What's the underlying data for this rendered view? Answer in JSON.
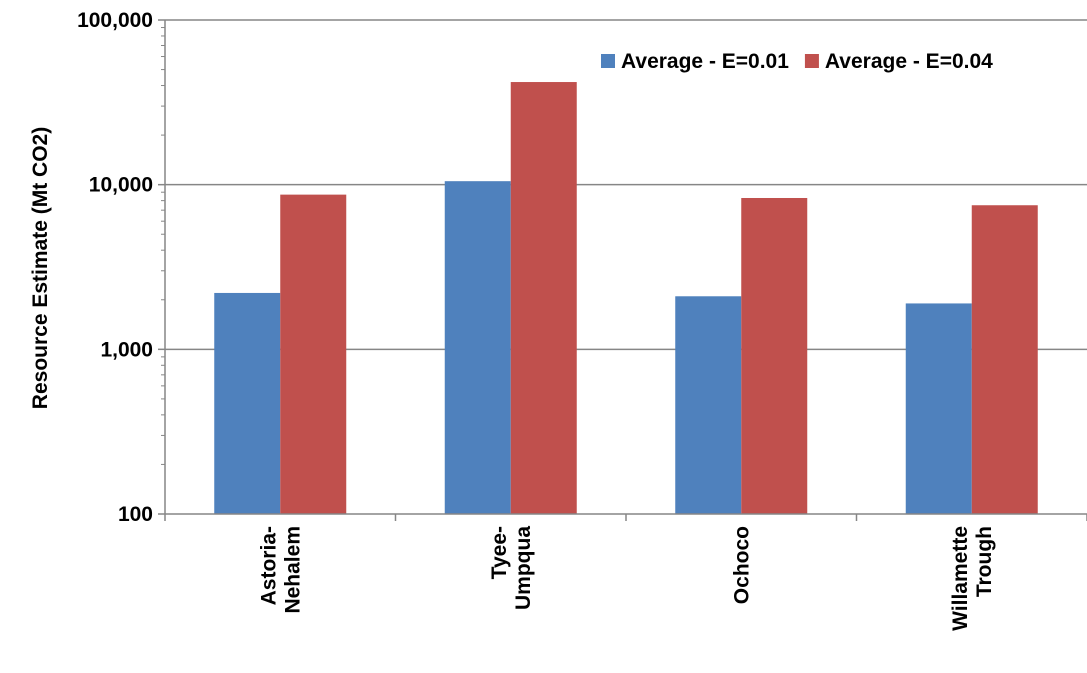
{
  "chart_data": {
    "type": "bar",
    "title": "",
    "xlabel": "",
    "ylabel": "Resource Estimate (Mt CO2)",
    "yscale": "log",
    "ylim": [
      100,
      100000
    ],
    "yticks": [
      100,
      1000,
      10000,
      100000
    ],
    "ytick_labels": [
      "100",
      "1,000",
      "10,000",
      "100,000"
    ],
    "grid": true,
    "legend_position": "top-right",
    "categories": [
      [
        "Astoria-",
        "Nehalem"
      ],
      [
        "Tyee-",
        "Umpqua"
      ],
      [
        "Ochoco"
      ],
      [
        "Willamette",
        "Trough"
      ]
    ],
    "series": [
      {
        "name": "Average - E=0.01",
        "color": "#4F81BD",
        "values": [
          2200,
          10500,
          2100,
          1900
        ]
      },
      {
        "name": "Average - E=0.04",
        "color": "#C0504D",
        "values": [
          8700,
          42000,
          8300,
          7500
        ]
      }
    ]
  }
}
